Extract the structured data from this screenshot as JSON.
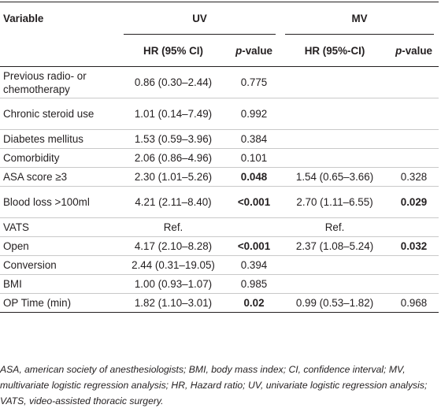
{
  "headers": {
    "variable": "Variable",
    "uv": "UV",
    "mv": "MV",
    "uv_hr": "HR (95% CI)",
    "uv_p": "p-value",
    "mv_hr": "HR (95%-CI)",
    "mv_p": "p-value"
  },
  "rows": [
    {
      "variable": "Previous radio- or chemotherapy",
      "uv_hr": "0.86 (0.30–2.44)",
      "uv_p": "0.775",
      "mv_hr": "",
      "mv_p": ""
    },
    {
      "variable": "Chronic steroid use",
      "uv_hr": "1.01 (0.14–7.49)",
      "uv_p": "0.992",
      "mv_hr": "",
      "mv_p": ""
    },
    {
      "variable": "Diabetes mellitus",
      "uv_hr": "1.53 (0.59–3.96)",
      "uv_p": "0.384",
      "mv_hr": "",
      "mv_p": ""
    },
    {
      "variable": "Comorbidity",
      "uv_hr": "2.06 (0.86–4.96)",
      "uv_p": "0.101",
      "mv_hr": "",
      "mv_p": ""
    },
    {
      "variable": "ASA score ≥3",
      "uv_hr": "2.30 (1.01–5.26)",
      "uv_p": "0.048",
      "mv_hr": "1.54 (0.65–3.66)",
      "mv_p": "0.328"
    },
    {
      "variable": "Blood loss >100ml",
      "uv_hr": "4.21 (2.11–8.40)",
      "uv_p": "<0.001",
      "mv_hr": "2.70 (1.11–6.55)",
      "mv_p": "0.029"
    },
    {
      "variable": "VATS",
      "uv_hr": "Ref.",
      "uv_p": "",
      "mv_hr": "Ref.",
      "mv_p": ""
    },
    {
      "variable": "Open",
      "uv_hr": "4.17 (2.10–8.28)",
      "uv_p": "<0.001",
      "mv_hr": "2.37 (1.08–5.24)",
      "mv_p": "0.032"
    },
    {
      "variable": "Conversion",
      "uv_hr": "2.44 (0.31–19.05)",
      "uv_p": "0.394",
      "mv_hr": "",
      "mv_p": ""
    },
    {
      "variable": "BMI",
      "uv_hr": "1.00 (0.93–1.07)",
      "uv_p": "0.985",
      "mv_hr": "",
      "mv_p": ""
    },
    {
      "variable": "OP Time (min)",
      "uv_hr": "1.82 (1.10–3.01)",
      "uv_p": "0.02",
      "mv_hr": "0.99 (0.53–1.82)",
      "mv_p": "0.968"
    }
  ],
  "footnote": "ASA, american society of anesthesiologists; BMI, body mass index; CI, confidence interval; MV, multivariate logistic regression analysis; HR, Hazard ratio; UV, univariate logistic regression analysis; VATS, video-assisted thoracic surgery."
}
